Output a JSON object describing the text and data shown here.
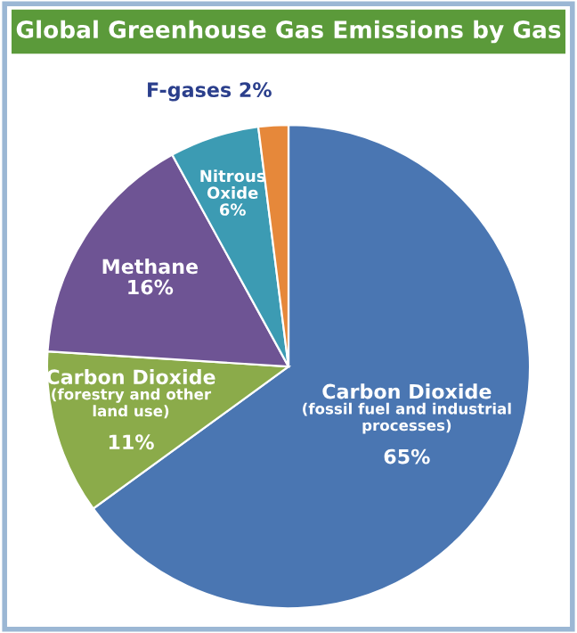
{
  "chart_data": {
    "type": "pie",
    "title": "Global Greenhouse Gas Emissions by Gas",
    "categories": [
      "Carbon Dioxide\n(fossil fuel and industrial\nprocesses)",
      "Carbon Dioxide\n(forestry and other\nland use)",
      "Methane",
      "Nitrous\nOxide",
      "F-gases"
    ],
    "values": [
      65,
      11,
      16,
      6,
      2
    ],
    "value_labels": [
      "65%",
      "11%",
      "16%",
      "6%",
      "2%"
    ],
    "colors": [
      "#4a76b2",
      "#8bab4a",
      "#6e5494",
      "#3c9bb3",
      "#e6883a"
    ]
  }
}
